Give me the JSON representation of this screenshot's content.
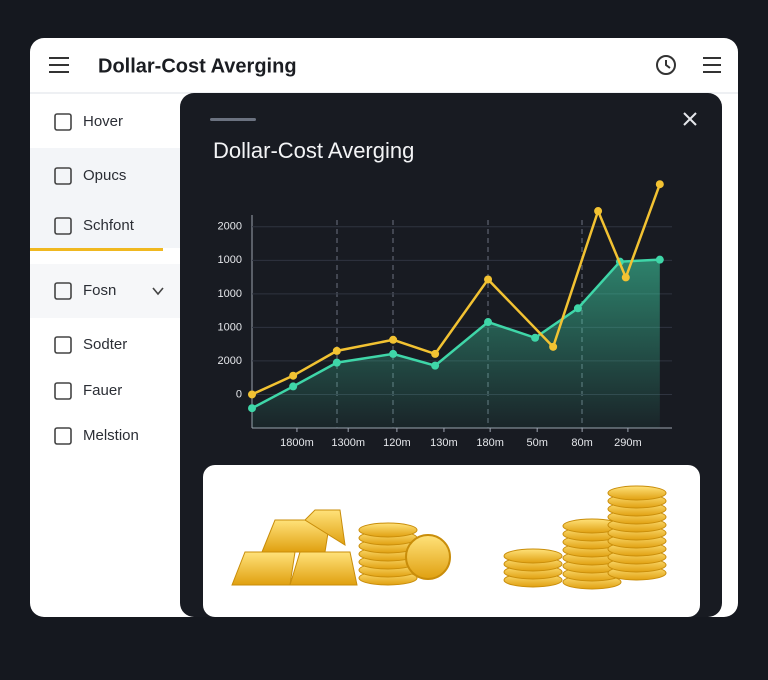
{
  "header": {
    "title": "Dollar-Cost Averging"
  },
  "sidebar": {
    "items": [
      "Hover",
      "Opucs",
      "Schfont",
      "Fosn",
      "Sodter",
      "Fauer",
      "Melstion"
    ]
  },
  "modal": {
    "title": "Dollar-Cost Averging"
  },
  "chart_data": {
    "type": "line",
    "ylim": [
      -1,
      6.5
    ],
    "yticks": [
      {
        "value": 5,
        "label": "2000"
      },
      {
        "value": 4,
        "label": "1000"
      },
      {
        "value": 3,
        "label": "1000"
      },
      {
        "value": 2,
        "label": "1000"
      },
      {
        "value": 1,
        "label": "2000"
      },
      0
    ],
    "xlim": [
      0,
      100
    ],
    "xticks": [
      {
        "value": 10.7,
        "label": "1800m"
      },
      {
        "value": 22.9,
        "label": "1300m"
      },
      {
        "value": 34.5,
        "label": "120m"
      },
      {
        "value": 45.7,
        "label": "130m"
      },
      {
        "value": 56.7,
        "label": "180m"
      },
      {
        "value": 67.9,
        "label": "50m"
      },
      {
        "value": 78.6,
        "label": "80m"
      },
      {
        "value": 89.5,
        "label": "290m"
      }
    ],
    "grid": true,
    "series": [
      {
        "color": "#f2c232",
        "x": [
          0,
          9.8,
          20.2,
          33.6,
          43.6,
          56.2,
          71.7,
          82.4,
          89,
          97.1
        ],
        "values": [
          0,
          0.56,
          1.3,
          1.63,
          1.21,
          3.43,
          1.42,
          5.47,
          3.49,
          6.27
        ]
      },
      {
        "color": "#3fd6a8",
        "fill": true,
        "x": [
          0,
          9.8,
          20.2,
          33.6,
          43.6,
          56.2,
          67.4,
          77.6,
          87.6,
          97.1
        ],
        "values": [
          -0.41,
          0.24,
          0.95,
          1.21,
          0.86,
          2.16,
          1.69,
          2.57,
          3.96,
          4.02
        ]
      }
    ]
  }
}
